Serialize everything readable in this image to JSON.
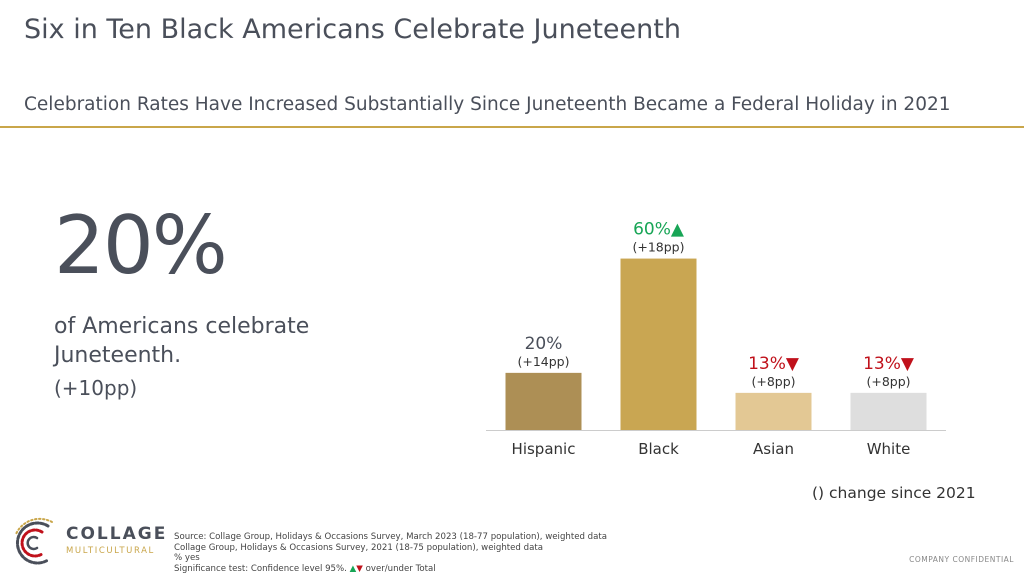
{
  "header": {
    "title": "Six in Ten Black Americans Celebrate Juneteenth",
    "subtitle": "Celebration Rates Have Increased Substantially Since Juneteenth Became a Federal Holiday in 2021"
  },
  "stat": {
    "value": "20%",
    "description": "of Americans celebrate Juneteenth.",
    "change": "(+10pp)"
  },
  "chart_data": {
    "type": "bar",
    "title": "",
    "xlabel": "",
    "ylabel": "",
    "ylim": [
      0,
      70
    ],
    "categories": [
      "Hispanic",
      "Black",
      "Asian",
      "White"
    ],
    "values": [
      20,
      60,
      13,
      13
    ],
    "value_labels": [
      "20%",
      "60%",
      "13%",
      "13%"
    ],
    "change_labels": [
      "(+14pp)",
      "(+18pp)",
      "(+8pp)",
      "(+8pp)"
    ],
    "significance": [
      "none",
      "up",
      "down",
      "down"
    ],
    "colors": [
      "#ad8f55",
      "#c9a652",
      "#e3c894",
      "#dedede"
    ],
    "value_colors": {
      "none": "#4a4f5a",
      "up": "#18a556",
      "down": "#c0111b"
    },
    "grid": false,
    "legend": "none"
  },
  "chart_note": "() change since 2021",
  "logo": {
    "name": "COLLAGE",
    "subtitle": "MULTICULTURAL"
  },
  "sources": {
    "line1": "Source: Collage Group, Holidays & Occasions Survey, March 2023 (18-77 population), weighted data",
    "line2": "Collage Group, Holidays & Occasions Survey, 2021 (18-75 population), weighted data",
    "line3": "% yes",
    "line4_prefix": "Significance test: Confidence level 95%.",
    "line4_suffix": "over/under Total"
  },
  "confidential": "COMPANY CONFIDENTIAL"
}
